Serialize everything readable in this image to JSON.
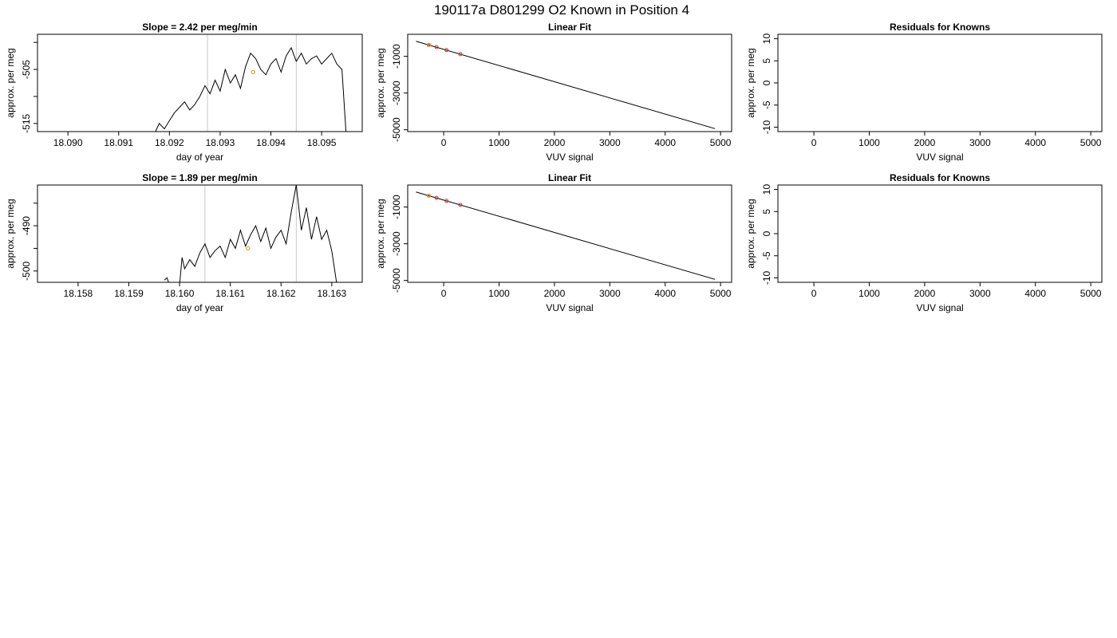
{
  "figure": {
    "title": "190117a     D801299   O2 Known in Position  4",
    "colors": {
      "trace": "#000000",
      "vline": "#c8c8c8",
      "known_marker": "#ff8c00",
      "fit_marker": "#cc3333",
      "axis": "#000000"
    }
  },
  "chart_data": [
    {
      "type": "line",
      "title": "Slope =  2.42  per meg/min",
      "xlabel": "day of year",
      "ylabel": "approx. per meg",
      "xlim": [
        18.0894,
        18.0958
      ],
      "ylim": [
        -516.5,
        -498.5
      ],
      "xticks": [
        "18.090",
        "18.091",
        "18.092",
        "18.093",
        "18.094",
        "18.095"
      ],
      "xtick_values": [
        18.09,
        18.091,
        18.092,
        18.093,
        18.094,
        18.095
      ],
      "yticks": [
        "-515",
        "",
        "-505",
        ""
      ],
      "ytick_values": [
        -515,
        -510,
        -505,
        -500
      ],
      "vlines": [
        18.09275,
        18.0945
      ],
      "series": [
        {
          "x": [
            18.0917,
            18.0918,
            18.0919,
            18.092,
            18.0921,
            18.0922,
            18.0923,
            18.0924,
            18.0925,
            18.0926,
            18.0927,
            18.0928,
            18.0929,
            18.093,
            18.0931,
            18.0932,
            18.0933,
            18.0934,
            18.0935,
            18.0936,
            18.0937,
            18.0938,
            18.0939,
            18.094,
            18.0941,
            18.0942,
            18.0943,
            18.0944,
            18.0945,
            18.0946,
            18.0947,
            18.0948,
            18.0949,
            18.095,
            18.0951,
            18.0952,
            18.0953,
            18.0954,
            18.09548
          ],
          "y": [
            -517,
            -515,
            -516,
            -514.5,
            -513,
            -512,
            -511,
            -512.5,
            -511.5,
            -510,
            -508,
            -509.5,
            -507,
            -509,
            -505,
            -507.5,
            -506,
            -508.5,
            -504.5,
            -502,
            -503,
            -505,
            -506,
            -504,
            -503,
            -505.5,
            -502.5,
            -501,
            -503.5,
            -502,
            -504,
            -503,
            -502.5,
            -504,
            -503,
            -502,
            -504,
            -505,
            -516.5
          ]
        }
      ],
      "markers": [
        {
          "x": 18.09365,
          "y": -505.5
        }
      ]
    },
    {
      "type": "scatter",
      "title": "Linear Fit",
      "xlabel": "VUV signal",
      "ylabel": "approx. per meg",
      "xlim": [
        -650,
        5200
      ],
      "ylim": [
        -5100,
        200
      ],
      "xticks": [
        "0",
        "1000",
        "2000",
        "3000",
        "4000",
        "5000"
      ],
      "xtick_values": [
        0,
        1000,
        2000,
        3000,
        4000,
        5000
      ],
      "yticks": [
        "-5000",
        "-3000",
        "-1000"
      ],
      "ytick_values": [
        -5000,
        -3000,
        -1000
      ],
      "fit_line": {
        "x": [
          -500,
          4900
        ],
        "y": [
          -180,
          -4940
        ]
      },
      "points": [
        {
          "x": -270,
          "y": -380
        },
        {
          "x": -130,
          "y": -500
        },
        {
          "x": 50,
          "y": -660
        },
        {
          "x": 300,
          "y": -880
        }
      ],
      "known_point": {
        "x": -265,
        "y": -370
      }
    },
    {
      "type": "scatter",
      "title": "Residuals for Knowns",
      "xlabel": "VUV signal",
      "ylabel": "approx. per meg",
      "xlim": [
        -650,
        5200
      ],
      "ylim": [
        -11,
        11
      ],
      "xticks": [
        "0",
        "1000",
        "2000",
        "3000",
        "4000",
        "5000"
      ],
      "xtick_values": [
        0,
        1000,
        2000,
        3000,
        4000,
        5000
      ],
      "yticks": [
        "-10",
        "-5",
        "0",
        "5",
        "10"
      ],
      "ytick_values": [
        -10,
        -5,
        0,
        5,
        10
      ]
    },
    {
      "type": "line",
      "title": "Slope =  1.89  per meg/min",
      "xlabel": "day of year",
      "ylabel": "approx. per meg",
      "xlim": [
        18.1572,
        18.1636
      ],
      "ylim": [
        -502.5,
        -481.0
      ],
      "xticks": [
        "18.158",
        "18.159",
        "18.160",
        "18.161",
        "18.162",
        "18.163"
      ],
      "xtick_values": [
        18.158,
        18.159,
        18.16,
        18.161,
        18.162,
        18.163
      ],
      "yticks": [
        "-500",
        "",
        "-490",
        ""
      ],
      "ytick_values": [
        -500,
        -495,
        -490,
        -485
      ],
      "vlines": [
        18.1605,
        18.1623
      ],
      "series": [
        {
          "x": [
            18.1597,
            18.15975,
            18.1598,
            18.1599,
            18.16,
            18.16005,
            18.1601,
            18.1602,
            18.1603,
            18.1604,
            18.1605,
            18.1606,
            18.1607,
            18.1608,
            18.1609,
            18.161,
            18.1611,
            18.1612,
            18.1613,
            18.1614,
            18.1615,
            18.1616,
            18.1617,
            18.1618,
            18.1619,
            18.162,
            18.1621,
            18.1622,
            18.1623,
            18.1624,
            18.1625,
            18.1626,
            18.1627,
            18.1628,
            18.1629,
            18.163,
            18.1631
          ],
          "y": [
            -502,
            -501.5,
            -503,
            -503,
            -503,
            -497,
            -499.5,
            -497.5,
            -499,
            -496,
            -494,
            -497,
            -495.5,
            -494.5,
            -497,
            -493,
            -495,
            -491,
            -494.5,
            -492,
            -490,
            -493.5,
            -490.5,
            -495,
            -492.5,
            -491,
            -494,
            -487,
            -481,
            -491,
            -486,
            -493,
            -488,
            -493,
            -491,
            -495.5,
            -503
          ]
        }
      ],
      "markers": [
        {
          "x": 18.16135,
          "y": -495
        }
      ]
    },
    {
      "type": "scatter",
      "title": "Linear Fit",
      "xlabel": "VUV signal",
      "ylabel": "approx. per meg",
      "xlim": [
        -650,
        5200
      ],
      "ylim": [
        -5100,
        200
      ],
      "xticks": [
        "0",
        "1000",
        "2000",
        "3000",
        "4000",
        "5000"
      ],
      "xtick_values": [
        0,
        1000,
        2000,
        3000,
        4000,
        5000
      ],
      "yticks": [
        "-5000",
        "-3000",
        "-1000"
      ],
      "ytick_values": [
        -5000,
        -3000,
        -1000
      ],
      "fit_line": {
        "x": [
          -500,
          4900
        ],
        "y": [
          -180,
          -4940
        ]
      },
      "points": [
        {
          "x": -270,
          "y": -380
        },
        {
          "x": -130,
          "y": -500
        },
        {
          "x": 50,
          "y": -660
        },
        {
          "x": 300,
          "y": -880
        }
      ],
      "known_point": {
        "x": -270,
        "y": -380
      }
    },
    {
      "type": "scatter",
      "title": "Residuals for Knowns",
      "xlabel": "VUV signal",
      "ylabel": "approx. per meg",
      "xlim": [
        -650,
        5200
      ],
      "ylim": [
        -11,
        11
      ],
      "xticks": [
        "0",
        "1000",
        "2000",
        "3000",
        "4000",
        "5000"
      ],
      "xtick_values": [
        0,
        1000,
        2000,
        3000,
        4000,
        5000
      ],
      "yticks": [
        "-10",
        "-5",
        "0",
        "5",
        "10"
      ],
      "ytick_values": [
        -10,
        -5,
        0,
        5,
        10
      ]
    }
  ]
}
